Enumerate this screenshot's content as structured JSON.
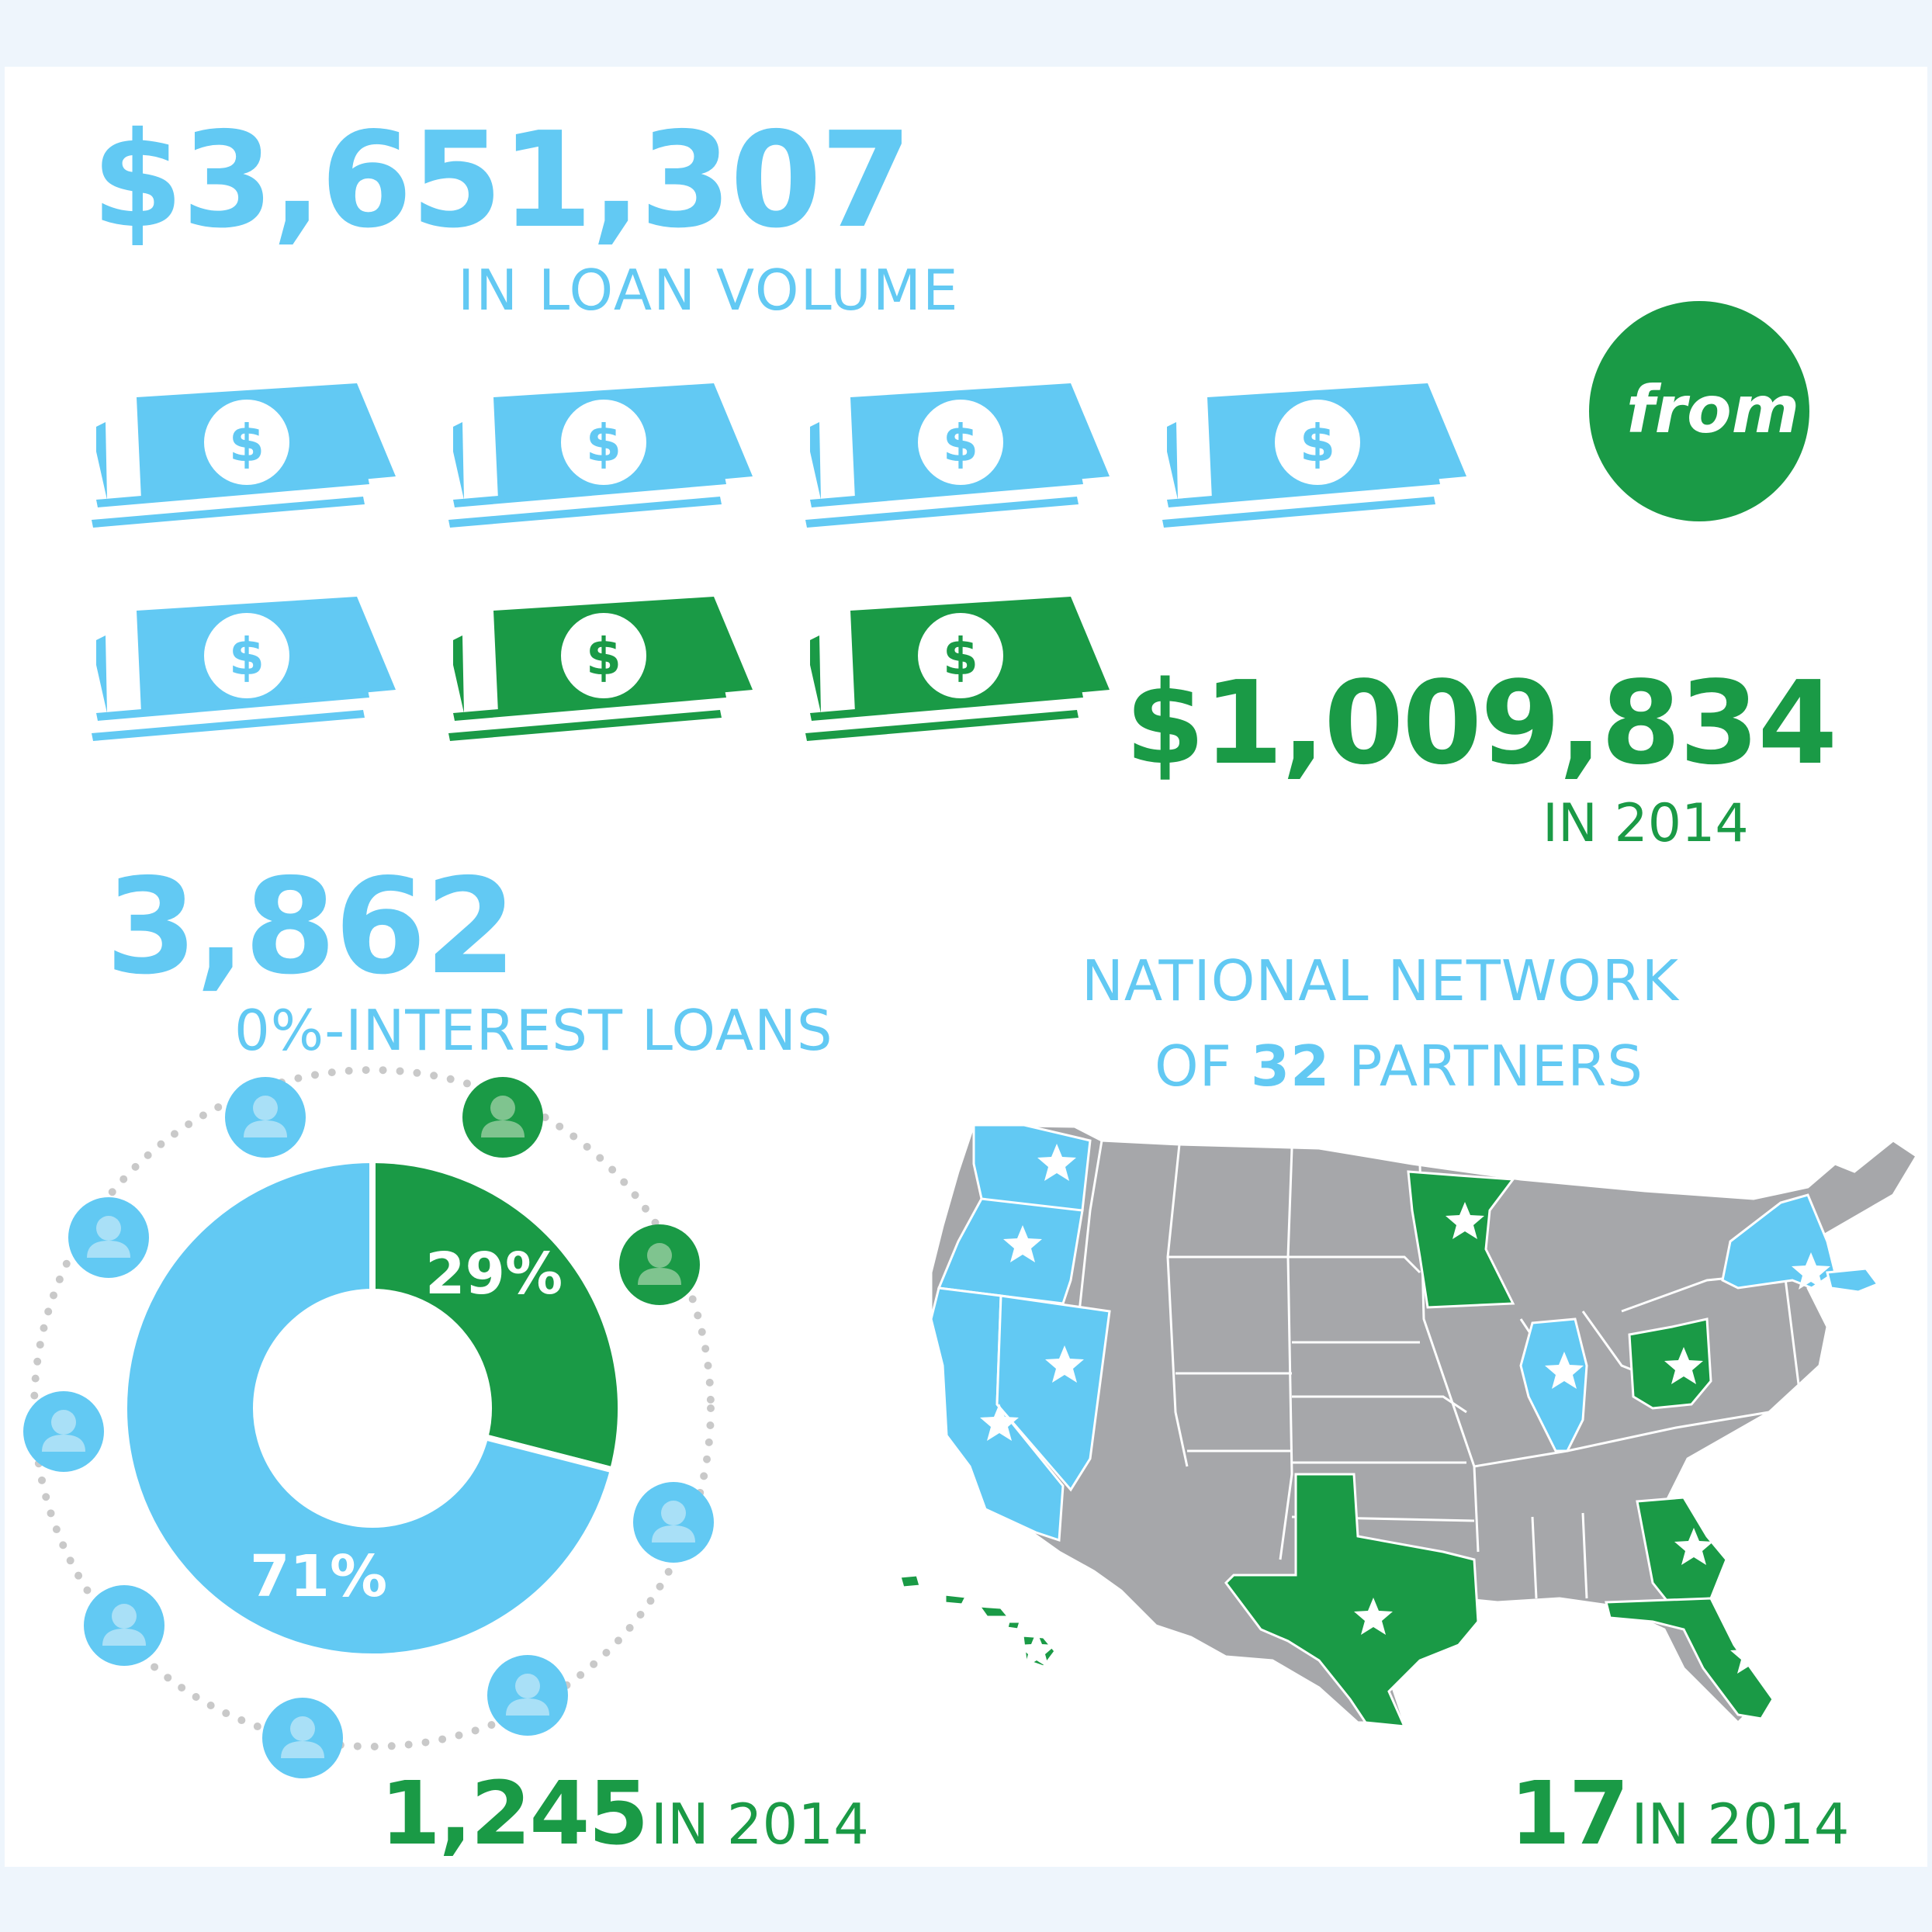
{
  "colors": {
    "blue": "#62c9f3",
    "green": "#1a9a46",
    "gray": "#a6a7aa",
    "dots": "#c9c9c9",
    "background": "#eef5fc"
  },
  "loan_volume": {
    "amount": "$3,651,307",
    "label": "IN LOAN VOLUME"
  },
  "from_badge": {
    "text": "from"
  },
  "year_volume": {
    "amount": "$1,009,834",
    "label": "IN 2014"
  },
  "money_icons": {
    "icon": "dollar-bill-stack-icon",
    "symbol": "$",
    "colors": [
      "blue",
      "blue",
      "blue",
      "blue",
      "blue",
      "green",
      "green"
    ]
  },
  "loans": {
    "count": "3,862",
    "label": "0%-INTEREST LOANS"
  },
  "donut": {
    "segments": [
      {
        "label": "29%",
        "value": 29,
        "color": "green"
      },
      {
        "label": "71%",
        "value": 71,
        "color": "blue"
      }
    ]
  },
  "loans_2014": {
    "count": "1,245",
    "label": "IN 2014"
  },
  "person_icons": {
    "icon": "person-icon",
    "colors": [
      "blue",
      "green",
      "green",
      "blue",
      "blue",
      "blue",
      "blue",
      "blue",
      "blue",
      "blue"
    ]
  },
  "network": {
    "line1": "NATIONAL NETWORK",
    "line2_pre": "OF ",
    "line2_num": "32",
    "line2_post": " PARTNERS"
  },
  "partners_2014": {
    "count": "17",
    "label": "IN 2014"
  },
  "map": {
    "icon": "us-states-map",
    "blue_states": [
      "Washington",
      "Oregon",
      "California",
      "Nevada",
      "Illinois",
      "New York",
      "Massachusetts"
    ],
    "green_states": [
      "Minnesota",
      "Ohio",
      "Texas",
      "Georgia",
      "Florida",
      "Hawaii"
    ],
    "marker_icon": "partner-star-icon"
  }
}
